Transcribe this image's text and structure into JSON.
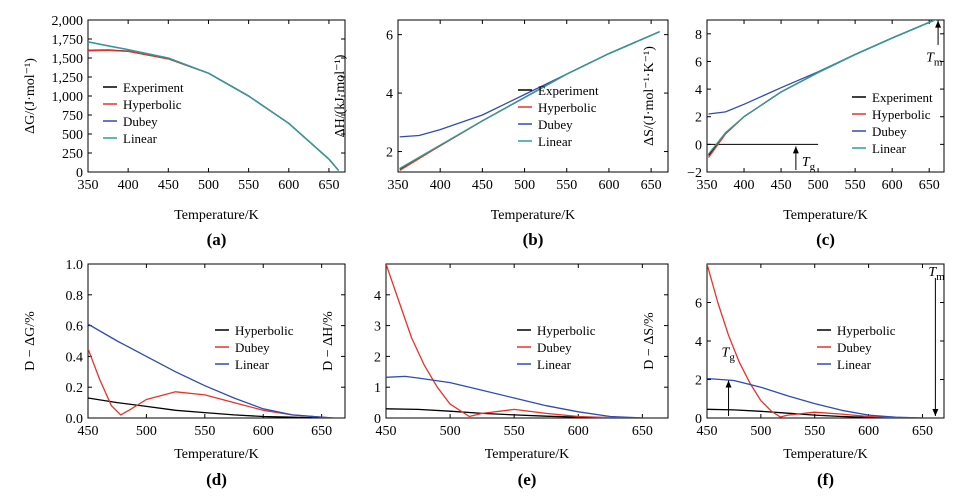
{
  "colors": {
    "experiment": "#000000",
    "hyperbolic": "#e8332a",
    "dubey": "#2f4bb5",
    "linear": "#2aa198"
  },
  "chart_data": [
    {
      "panel": "(a)",
      "type": "line",
      "xlabel": "Temperature/K",
      "ylabel": "ΔG/(J·mol⁻¹)",
      "xlim": [
        350,
        670
      ],
      "ylim": [
        0,
        2000
      ],
      "xticks": [
        350,
        400,
        450,
        500,
        550,
        600,
        650
      ],
      "yticks": [
        0,
        250,
        500,
        750,
        1000,
        1250,
        1500,
        1750,
        2000
      ],
      "ytick_labels": [
        "0",
        "250",
        "500",
        "750",
        "1,000",
        "1,250",
        "1,500",
        "1,750",
        "2,000"
      ],
      "legend_position": "center-left",
      "series": [
        {
          "name": "Experiment",
          "color_key": "experiment",
          "x": [
            350,
            375,
            400,
            450,
            500,
            550,
            600,
            650,
            662
          ],
          "y": [
            1600,
            1605,
            1590,
            1490,
            1300,
            1000,
            640,
            170,
            20
          ]
        },
        {
          "name": "Hyperbolic",
          "color_key": "hyperbolic",
          "x": [
            350,
            375,
            400,
            450,
            500,
            550,
            600,
            650,
            662
          ],
          "y": [
            1595,
            1600,
            1588,
            1490,
            1300,
            1000,
            640,
            170,
            20
          ]
        },
        {
          "name": "Dubey",
          "color_key": "dubey",
          "x": [
            350,
            375,
            400,
            450,
            500,
            550,
            600,
            650,
            662
          ],
          "y": [
            1715,
            1660,
            1610,
            1500,
            1300,
            1000,
            640,
            170,
            20
          ]
        },
        {
          "name": "Linear",
          "color_key": "linear",
          "x": [
            350,
            375,
            400,
            450,
            500,
            550,
            600,
            650,
            662
          ],
          "y": [
            1710,
            1658,
            1608,
            1500,
            1300,
            1000,
            640,
            170,
            20
          ]
        }
      ],
      "annotations": []
    },
    {
      "panel": "(b)",
      "type": "line",
      "xlabel": "Temperature/K",
      "ylabel": "ΔH/(kJ·mol⁻¹)",
      "xlim": [
        350,
        670
      ],
      "ylim": [
        1.3,
        6.5
      ],
      "xticks": [
        350,
        400,
        450,
        500,
        550,
        600,
        650
      ],
      "yticks": [
        2,
        4,
        6
      ],
      "ytick_labels": [
        "2",
        "4",
        "6"
      ],
      "legend_position": "bottom-right",
      "series": [
        {
          "name": "Experiment",
          "color_key": "experiment",
          "x": [
            352,
            400,
            450,
            500,
            550,
            600,
            660
          ],
          "y": [
            1.4,
            2.2,
            3.05,
            3.85,
            4.65,
            5.35,
            6.1
          ]
        },
        {
          "name": "Hyperbolic",
          "color_key": "hyperbolic",
          "x": [
            352,
            400,
            450,
            500,
            550,
            600,
            660
          ],
          "y": [
            1.35,
            2.2,
            3.05,
            3.85,
            4.65,
            5.35,
            6.1
          ]
        },
        {
          "name": "Dubey",
          "color_key": "dubey",
          "x": [
            352,
            375,
            400,
            450,
            500,
            550,
            600,
            660
          ],
          "y": [
            2.5,
            2.55,
            2.75,
            3.25,
            3.95,
            4.65,
            5.35,
            6.1
          ]
        },
        {
          "name": "Linear",
          "color_key": "linear",
          "x": [
            352,
            400,
            450,
            500,
            550,
            600,
            660
          ],
          "y": [
            1.42,
            2.22,
            3.05,
            3.85,
            4.65,
            5.35,
            6.1
          ]
        }
      ],
      "annotations": []
    },
    {
      "panel": "(c)",
      "type": "line",
      "xlabel": "Temperature/K",
      "ylabel": "ΔS/(J·mol⁻¹·K⁻¹)",
      "xlim": [
        350,
        670
      ],
      "ylim": [
        -2,
        9
      ],
      "xticks": [
        350,
        400,
        450,
        500,
        550,
        600,
        650
      ],
      "yticks": [
        -2,
        0,
        2,
        4,
        6,
        8
      ],
      "ytick_labels": [
        "−2",
        "0",
        "2",
        "4",
        "6",
        "8"
      ],
      "legend_position": "center-right",
      "series": [
        {
          "name": "Experiment",
          "color_key": "experiment",
          "x": [
            352,
            375,
            400,
            450,
            500,
            550,
            600,
            662
          ],
          "y": [
            -0.8,
            0.8,
            2.0,
            3.8,
            5.2,
            6.5,
            7.7,
            9.1
          ]
        },
        {
          "name": "Hyperbolic",
          "color_key": "hyperbolic",
          "x": [
            352,
            375,
            400,
            450,
            500,
            550,
            600,
            662
          ],
          "y": [
            -0.95,
            0.75,
            2.0,
            3.8,
            5.2,
            6.5,
            7.7,
            9.1
          ]
        },
        {
          "name": "Dubey",
          "color_key": "dubey",
          "x": [
            352,
            375,
            400,
            450,
            500,
            550,
            600,
            662
          ],
          "y": [
            2.2,
            2.35,
            2.9,
            4.1,
            5.25,
            6.5,
            7.7,
            9.1
          ]
        },
        {
          "name": "Linear",
          "color_key": "linear",
          "x": [
            352,
            375,
            400,
            450,
            500,
            550,
            600,
            662
          ],
          "y": [
            -0.7,
            0.85,
            2.0,
            3.8,
            5.2,
            6.5,
            7.7,
            9.1
          ]
        }
      ],
      "hline": {
        "y": 0,
        "x_from": 350,
        "x_to": 500
      },
      "annotations": [
        {
          "label": "T",
          "sub": "g",
          "x": 470
        },
        {
          "label": "T",
          "sub": "m",
          "x": 662
        }
      ]
    },
    {
      "panel": "(d)",
      "type": "line",
      "xlabel": "Temperature/K",
      "ylabel": "D − ΔG/%",
      "xlim": [
        450,
        670
      ],
      "ylim": [
        0,
        1.0
      ],
      "xticks": [
        450,
        500,
        550,
        600,
        650
      ],
      "yticks": [
        0,
        0.2,
        0.4,
        0.6,
        0.8,
        1.0
      ],
      "ytick_labels": [
        "0.0",
        "0.2",
        "0.4",
        "0.6",
        "0.8",
        "1.0"
      ],
      "legend_position": "center-right",
      "series": [
        {
          "name": "Hyperbolic",
          "color_key": "experiment",
          "x": [
            450,
            475,
            500,
            525,
            550,
            575,
            600,
            625,
            650,
            660
          ],
          "y": [
            0.13,
            0.1,
            0.075,
            0.05,
            0.035,
            0.02,
            0.01,
            0.005,
            0.0,
            0.0
          ]
        },
        {
          "name": "Dubey",
          "color_key": "hyperbolic",
          "x": [
            450,
            460,
            470,
            478,
            485,
            500,
            525,
            550,
            575,
            600,
            625,
            650,
            660
          ],
          "y": [
            0.45,
            0.25,
            0.08,
            0.02,
            0.05,
            0.12,
            0.17,
            0.15,
            0.1,
            0.05,
            0.02,
            0.005,
            0.0
          ]
        },
        {
          "name": "Linear",
          "color_key": "dubey",
          "x": [
            450,
            475,
            500,
            525,
            550,
            575,
            600,
            625,
            650,
            660
          ],
          "y": [
            0.61,
            0.5,
            0.4,
            0.3,
            0.21,
            0.13,
            0.06,
            0.02,
            0.005,
            0.0
          ]
        }
      ],
      "annotations": []
    },
    {
      "panel": "(e)",
      "type": "line",
      "xlabel": "Temperature/K",
      "ylabel": "D − ΔH/%",
      "xlim": [
        450,
        670
      ],
      "ylim": [
        0,
        5
      ],
      "xticks": [
        450,
        500,
        550,
        600,
        650
      ],
      "yticks": [
        0,
        1,
        2,
        3,
        4
      ],
      "ytick_labels": [
        "0",
        "1",
        "2",
        "3",
        "4"
      ],
      "legend_position": "center-right",
      "series": [
        {
          "name": "Hyperbolic",
          "color_key": "experiment",
          "x": [
            450,
            475,
            500,
            525,
            550,
            575,
            600,
            625,
            650
          ],
          "y": [
            0.3,
            0.28,
            0.22,
            0.15,
            0.1,
            0.06,
            0.03,
            0.01,
            0.0
          ]
        },
        {
          "name": "Dubey",
          "color_key": "hyperbolic",
          "x": [
            450,
            460,
            470,
            480,
            490,
            500,
            515,
            525,
            550,
            575,
            600,
            625,
            650
          ],
          "y": [
            5.0,
            3.8,
            2.6,
            1.7,
            1.0,
            0.45,
            0.05,
            0.15,
            0.28,
            0.15,
            0.05,
            0.01,
            0.0
          ]
        },
        {
          "name": "Linear",
          "color_key": "dubey",
          "x": [
            450,
            465,
            475,
            500,
            525,
            550,
            575,
            600,
            625,
            650
          ],
          "y": [
            1.32,
            1.35,
            1.3,
            1.15,
            0.9,
            0.65,
            0.4,
            0.2,
            0.05,
            0.0
          ]
        }
      ],
      "annotations": []
    },
    {
      "panel": "(f)",
      "type": "line",
      "xlabel": "Temperature/K",
      "ylabel": "D − ΔS/%",
      "xlim": [
        450,
        670
      ],
      "ylim": [
        0,
        8
      ],
      "xticks": [
        450,
        500,
        550,
        600,
        650
      ],
      "yticks": [
        0,
        2,
        4,
        6
      ],
      "ytick_labels": [
        "0",
        "2",
        "4",
        "6"
      ],
      "legend_position": "center-right",
      "series": [
        {
          "name": "Hyperbolic",
          "color_key": "experiment",
          "x": [
            450,
            475,
            500,
            525,
            550,
            575,
            600,
            625,
            650
          ],
          "y": [
            0.45,
            0.42,
            0.35,
            0.25,
            0.15,
            0.08,
            0.03,
            0.01,
            0.0
          ]
        },
        {
          "name": "Dubey",
          "color_key": "hyperbolic",
          "x": [
            450,
            460,
            470,
            480,
            490,
            500,
            510,
            518,
            525,
            550,
            575,
            600,
            625,
            650
          ],
          "y": [
            8.0,
            6.0,
            4.3,
            2.9,
            1.8,
            0.9,
            0.35,
            0.05,
            0.15,
            0.3,
            0.2,
            0.08,
            0.02,
            0.0
          ]
        },
        {
          "name": "Linear",
          "color_key": "dubey",
          "x": [
            450,
            475,
            500,
            525,
            550,
            575,
            600,
            625,
            650
          ],
          "y": [
            2.05,
            1.95,
            1.6,
            1.15,
            0.75,
            0.4,
            0.15,
            0.04,
            0.0
          ]
        }
      ],
      "annotations": [
        {
          "label": "T",
          "sub": "g",
          "x": 470
        },
        {
          "label": "T",
          "sub": "m",
          "x": 662
        }
      ]
    }
  ]
}
